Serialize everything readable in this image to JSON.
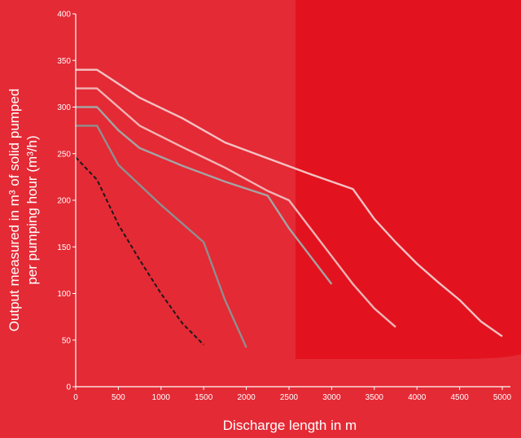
{
  "chart_data": {
    "type": "line",
    "xlabel": "Discharge  length in m",
    "ylabel_line1": "Output measured in m³ of solid pumped",
    "ylabel_line2": "per pumping hour (m³/h)",
    "xlim": [
      0,
      5000
    ],
    "ylim": [
      0,
      400
    ],
    "x_ticks": [
      0,
      500,
      1000,
      1500,
      2000,
      2500,
      3000,
      3500,
      4000,
      4500,
      5000
    ],
    "y_ticks": [
      0,
      50,
      100,
      150,
      200,
      250,
      300,
      350,
      400
    ],
    "grid": false,
    "legend": "none",
    "colors": {
      "background": "#e42a35",
      "highlight_band": "#e2131f",
      "axis": "#ffffff",
      "curve_1": "#f4c2c4",
      "curve_2": "#f0b4b6",
      "curve_3": "#a4a4a4",
      "curve_4": "#8f8f8f",
      "curve_5": "#1a1a1a"
    },
    "series": [
      {
        "style": "solid",
        "color_key": "curve_1",
        "x": [
          0,
          250,
          750,
          1250,
          1750,
          2250,
          2750,
          3250,
          3500,
          3750,
          4000,
          4250,
          4500,
          4750,
          5000
        ],
        "y": [
          340,
          340,
          310,
          288,
          262,
          245,
          228,
          212,
          180,
          155,
          132,
          112,
          93,
          70,
          54
        ]
      },
      {
        "style": "solid",
        "color_key": "curve_2",
        "x": [
          0,
          250,
          500,
          750,
          1250,
          1750,
          2250,
          2500,
          2750,
          3000,
          3250,
          3500,
          3750
        ],
        "y": [
          320,
          320,
          300,
          280,
          257,
          235,
          210,
          200,
          170,
          140,
          110,
          84,
          64
        ]
      },
      {
        "style": "solid",
        "color_key": "curve_3",
        "x": [
          0,
          250,
          500,
          750,
          1250,
          1750,
          2250,
          2500,
          2750,
          3000
        ],
        "y": [
          300,
          300,
          275,
          256,
          237,
          220,
          205,
          170,
          140,
          110
        ]
      },
      {
        "style": "solid",
        "color_key": "curve_4",
        "x": [
          0,
          250,
          500,
          1000,
          1500,
          1750,
          2000
        ],
        "y": [
          280,
          280,
          238,
          195,
          155,
          93,
          42
        ]
      },
      {
        "style": "dashed",
        "color_key": "curve_5",
        "x": [
          0,
          250,
          500,
          750,
          1000,
          1250,
          1500
        ],
        "y": [
          246,
          222,
          174,
          136,
          100,
          68,
          45
        ]
      }
    ]
  }
}
